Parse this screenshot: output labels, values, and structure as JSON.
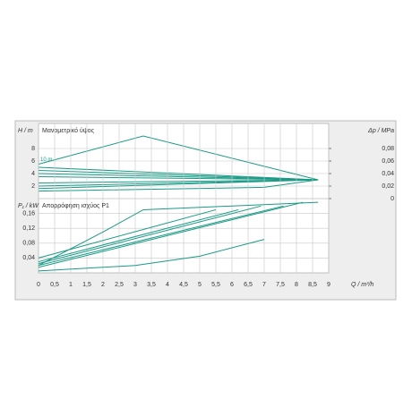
{
  "chart_data": [
    {
      "type": "line",
      "title": "Μανομετρικό ύψος",
      "ylabel": "H / m",
      "y2label": "Δp / MPa",
      "annotation": "10 m",
      "xlim": [
        0,
        9
      ],
      "ylim": [
        0,
        12
      ],
      "yticks": [
        2,
        4,
        6,
        8
      ],
      "y2lim": [
        0,
        0.12
      ],
      "y2ticks": [
        0,
        {
          "value": 0.02,
          "label": "0,02"
        },
        {
          "value": 0.04,
          "label": "0,04"
        },
        {
          "value": 0.06,
          "label": "0,06"
        },
        {
          "value": 0.08,
          "label": "0,08"
        }
      ],
      "grid": true,
      "series": [
        {
          "color": "#1a9a86",
          "x": [
            0,
            3.25,
            8.67
          ],
          "values": [
            5.5,
            10,
            3
          ]
        },
        {
          "color": "#1a9a86",
          "x": [
            0,
            7,
            8.67
          ],
          "values": [
            1.2,
            1.8,
            3
          ]
        },
        {
          "color": "#1a9a86",
          "x": [
            0,
            8.67
          ],
          "values": [
            5,
            3
          ]
        },
        {
          "color": "#1a9a86",
          "x": [
            0,
            8.67
          ],
          "values": [
            4.5,
            3
          ]
        },
        {
          "color": "#1a9a86",
          "x": [
            0,
            8.67
          ],
          "values": [
            4,
            3
          ]
        },
        {
          "color": "#1a9a86",
          "x": [
            0,
            8.67
          ],
          "values": [
            3.5,
            3
          ]
        },
        {
          "color": "#1a9a86",
          "x": [
            0,
            8.67
          ],
          "values": [
            2.5,
            3
          ]
        },
        {
          "color": "#1a9a86",
          "x": [
            0,
            8.67
          ],
          "values": [
            2,
            3
          ]
        },
        {
          "color": "#1a9a86",
          "x": [
            0,
            8.67
          ],
          "values": [
            1.6,
            3
          ]
        }
      ]
    },
    {
      "type": "line",
      "title": "Απορρόφηση ισχύος P1",
      "ylabel": "P₁ / kW",
      "xlabel": "Q / m³/h",
      "xlim": [
        0,
        9
      ],
      "ylim": [
        0,
        0.2
      ],
      "xticks": [
        0,
        {
          "value": 0.5,
          "label": "0,5"
        },
        1,
        {
          "value": 1.5,
          "label": "1,5"
        },
        2,
        {
          "value": 2.5,
          "label": "2,5"
        },
        3,
        {
          "value": 3.5,
          "label": "3,5"
        },
        4,
        {
          "value": 4.5,
          "label": "4,5"
        },
        5,
        {
          "value": 5.5,
          "label": "5,5"
        },
        6,
        {
          "value": 6.5,
          "label": "6,5"
        },
        7,
        {
          "value": 7.5,
          "label": "7,5"
        },
        8,
        {
          "value": 8.5,
          "label": "8,5"
        },
        9
      ],
      "yticks": [
        {
          "value": 0.04,
          "label": "0,04"
        },
        {
          "value": 0.08,
          "label": "0,08"
        },
        {
          "value": 0.12,
          "label": "0,12"
        },
        {
          "value": 0.16,
          "label": "0,16"
        }
      ],
      "grid": true,
      "series": [
        {
          "color": "#1a9a86",
          "x": [
            0,
            1,
            2,
            3.25,
            8.67
          ],
          "values": [
            0.02,
            0.065,
            0.11,
            0.17,
            0.19
          ]
        },
        {
          "color": "#1a9a86",
          "x": [
            0,
            3,
            5,
            7
          ],
          "values": [
            0.005,
            0.02,
            0.045,
            0.09
          ]
        },
        {
          "color": "#1a9a86",
          "x": [
            0,
            5.5
          ],
          "values": [
            0.04,
            0.17
          ]
        },
        {
          "color": "#1a9a86",
          "x": [
            0,
            6.2
          ],
          "values": [
            0.03,
            0.17
          ]
        },
        {
          "color": "#1a9a86",
          "x": [
            0,
            6.9
          ],
          "values": [
            0.025,
            0.18
          ]
        },
        {
          "color": "#1a9a86",
          "x": [
            0,
            7.6
          ],
          "values": [
            0.02,
            0.18
          ]
        },
        {
          "color": "#1a9a86",
          "x": [
            0,
            8.2
          ],
          "values": [
            0.015,
            0.19
          ]
        }
      ]
    }
  ]
}
